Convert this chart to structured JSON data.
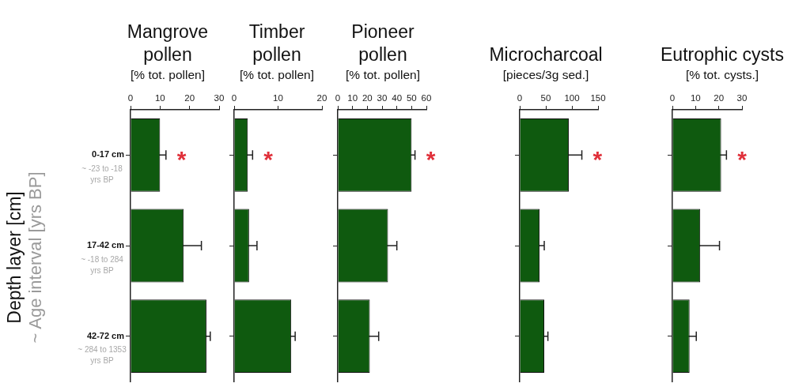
{
  "chart_data": [
    {
      "type": "bar",
      "orientation": "horizontal",
      "title": "Mangrove pollen",
      "xlabel": "[% tot. pollen]",
      "ylabel": "Depth layer [cm]\n~ Age interval [yrs BP]",
      "categories": [
        "0-17 cm\n~ -23 to -18 yrs BP",
        "17-42 cm\n~ -18 to 284 yrs BP",
        "42-72 cm\n~ 284 to 1353 yrs BP"
      ],
      "values": [
        10,
        18,
        25.7
      ],
      "errors": [
        2,
        6,
        1.3
      ],
      "color": "#0f5a0f",
      "xlim": [
        0,
        30
      ],
      "xticks": [
        0,
        10,
        20,
        30
      ],
      "annotations": [
        "*"
      ]
    },
    {
      "type": "bar",
      "orientation": "horizontal",
      "title": "Timber pollen",
      "xlabel": "[% tot. pollen]",
      "categories": [
        null,
        null,
        null
      ],
      "values": [
        3.1,
        3.4,
        13
      ],
      "errors": [
        1.1,
        1.8,
        0.9
      ],
      "color": "#0f5a0f",
      "xlim": [
        0,
        20
      ],
      "xticks": [
        0,
        10,
        20
      ],
      "tick_labels": "x",
      "annotations": [
        "*"
      ]
    },
    {
      "type": "bar",
      "orientation": "horizontal",
      "title": "Pioneer pollen",
      "xlabel": "[% tot. pollen]",
      "categories": [
        null,
        null,
        null
      ],
      "values": [
        50,
        34,
        21.7
      ],
      "errors": [
        2.3,
        6,
        6
      ],
      "color": "#0f5a0f",
      "xlim": [
        0,
        60
      ],
      "xticks": [
        0,
        10,
        20,
        30,
        40,
        50,
        60
      ],
      "tick_labels": "x",
      "annotations": [
        "*"
      ]
    },
    {
      "type": "bar",
      "orientation": "horizontal",
      "title": "Microcharcoal",
      "xlabel": "[pieces/3g sed.]",
      "categories": [
        null,
        null,
        null
      ],
      "values": [
        94,
        38,
        47
      ],
      "errors": [
        25,
        9,
        7
      ],
      "color": "#0f5a0f",
      "xlim": [
        0,
        150
      ],
      "xticks": [
        0,
        50,
        100,
        150
      ],
      "tick_labels": "x",
      "annotations": [
        "*"
      ]
    },
    {
      "type": "bar",
      "orientation": "horizontal",
      "title": "Eutrophic cysts",
      "xlabel": "[% tot. cysts.]",
      "categories": [
        null,
        null,
        null
      ],
      "values": [
        21,
        12,
        7.4
      ],
      "errors": [
        2.3,
        8.3,
        2.9
      ],
      "color": "#0f5a0f",
      "xlim": [
        0,
        30
      ],
      "xticks": [
        0,
        10,
        20,
        30
      ],
      "tick_labels": "x",
      "annotations": [
        "*"
      ]
    }
  ]
}
